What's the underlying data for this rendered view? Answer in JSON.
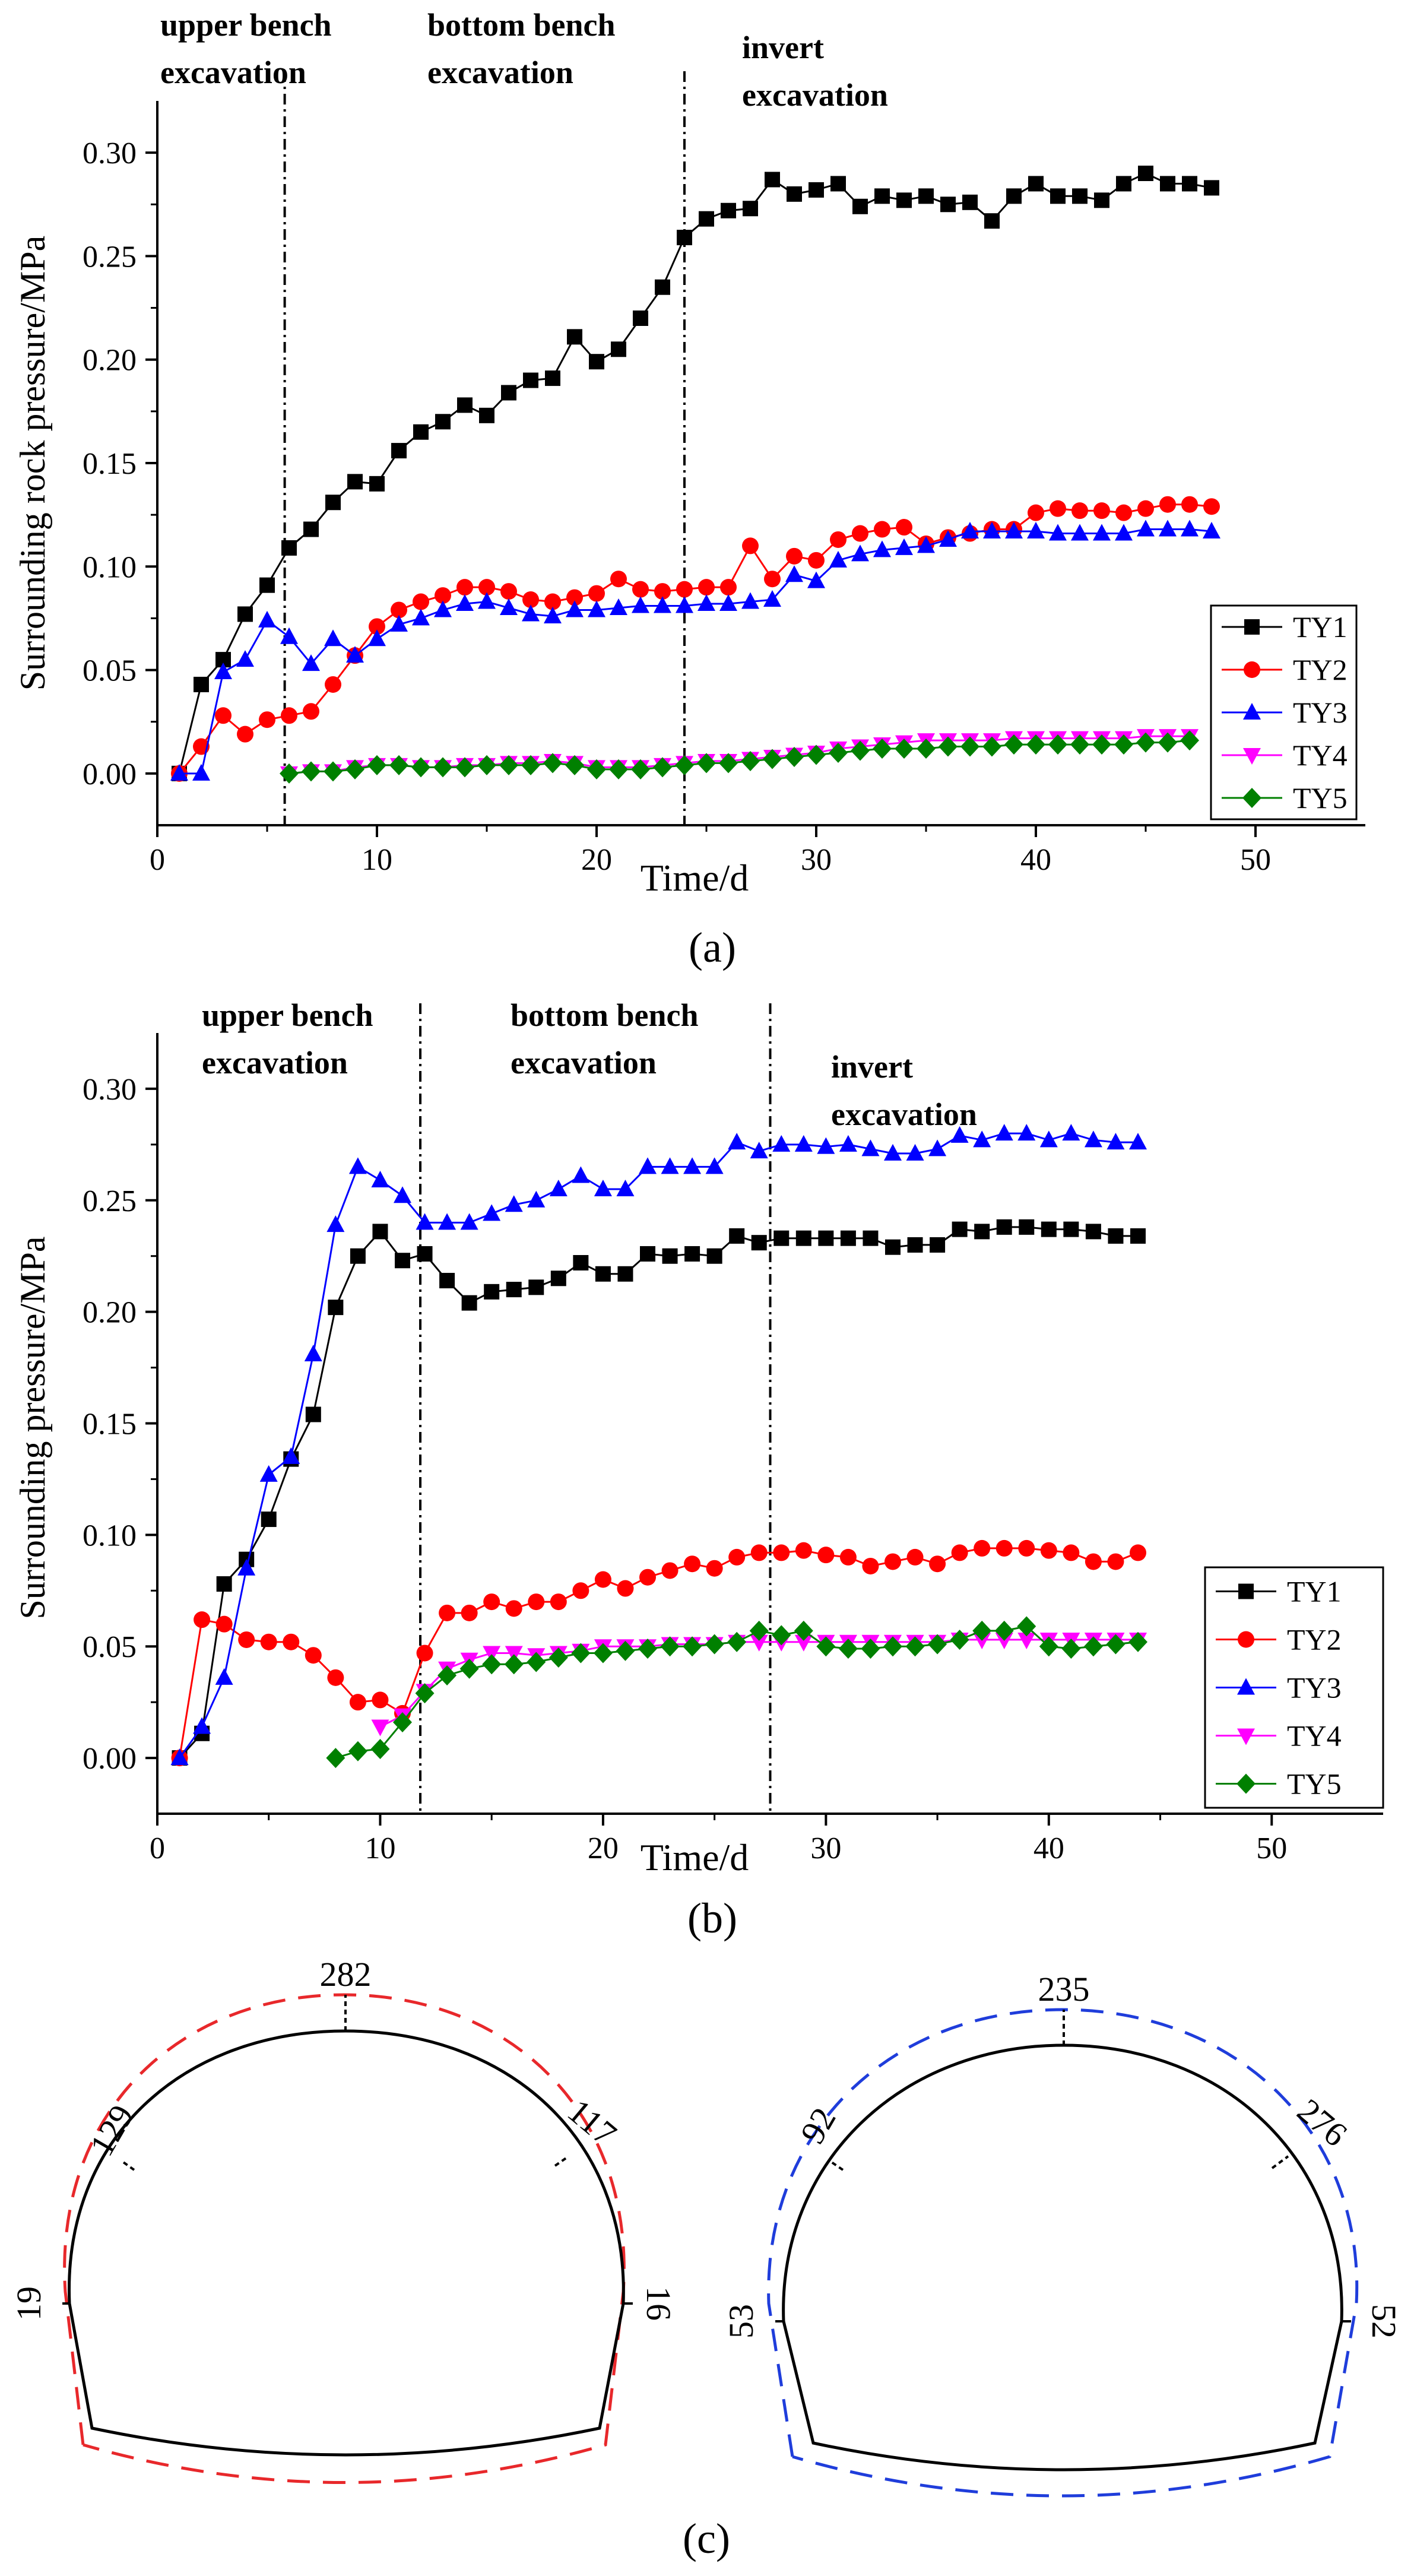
{
  "panels": [
    {
      "id": "a",
      "caption": "(a)",
      "phases": [
        "upper bench excavation",
        "bottom bench excavation",
        "invert excavation"
      ],
      "phase_dividers_x": [
        5.8,
        24.0
      ],
      "colors": {
        "TY1": "#000000",
        "TY2": "#ff0000",
        "TY3": "#0000ff",
        "TY4": "#ff00ff",
        "TY5": "#008000"
      }
    },
    {
      "id": "b",
      "caption": "(b)",
      "phases": [
        "upper bench excavation",
        "bottom bench excavation",
        "invert excavation"
      ],
      "phase_dividers_x": [
        11.8,
        27.5
      ],
      "colors": {
        "TY1": "#000000",
        "TY2": "#ff0000",
        "TY3": "#0000ff",
        "TY4": "#ff00ff",
        "TY5": "#008000"
      }
    }
  ],
  "chart_data": [
    {
      "type": "line",
      "xlabel": "Time/d",
      "ylabel": "Surrounding rock pressure/MPa",
      "xlim": [
        0,
        55
      ],
      "ylim": [
        -0.025,
        0.325
      ],
      "xticks": [
        "0",
        "10",
        "20",
        "30",
        "40",
        "50"
      ],
      "xtick_values": [
        0,
        10,
        20,
        30,
        40,
        50
      ],
      "yticks": [
        "0.00",
        "0.05",
        "0.10",
        "0.15",
        "0.20",
        "0.25",
        "0.30"
      ],
      "ytick_values": [
        0.0,
        0.05,
        0.1,
        0.15,
        0.2,
        0.25,
        0.3
      ],
      "legend_position": "bottom-right",
      "series": [
        {
          "name": "TY1",
          "marker": "square",
          "x": [
            1,
            2,
            3,
            4,
            5,
            6,
            7,
            8,
            9,
            10,
            11,
            12,
            13,
            14,
            15,
            16,
            17,
            18,
            19,
            20,
            21,
            22,
            23,
            24,
            25,
            26,
            27,
            28,
            29,
            30,
            31,
            32,
            33,
            34,
            35,
            36,
            37,
            38,
            39,
            40,
            41,
            42,
            43,
            44,
            45,
            46,
            47,
            48
          ],
          "y": [
            0.0,
            0.043,
            0.055,
            0.077,
            0.091,
            0.109,
            0.118,
            0.131,
            0.141,
            0.14,
            0.156,
            0.165,
            0.17,
            0.178,
            0.173,
            0.184,
            0.19,
            0.191,
            0.211,
            0.199,
            0.205,
            0.22,
            0.235,
            0.259,
            0.268,
            0.272,
            0.273,
            0.287,
            0.28,
            0.282,
            0.285,
            0.274,
            0.279,
            0.277,
            0.279,
            0.275,
            0.276,
            0.267,
            0.279,
            0.285,
            0.279,
            0.279,
            0.277,
            0.285,
            0.29,
            0.285,
            0.285,
            0.283
          ]
        },
        {
          "name": "TY2",
          "marker": "circle",
          "x": [
            1,
            2,
            3,
            4,
            5,
            6,
            7,
            8,
            9,
            10,
            11,
            12,
            13,
            14,
            15,
            16,
            17,
            18,
            19,
            20,
            21,
            22,
            23,
            24,
            25,
            26,
            27,
            28,
            29,
            30,
            31,
            32,
            33,
            34,
            35,
            36,
            37,
            38,
            39,
            40,
            41,
            42,
            43,
            44,
            45,
            46,
            47,
            48
          ],
          "y": [
            0.0,
            0.013,
            0.028,
            0.019,
            0.026,
            0.028,
            0.03,
            0.043,
            0.057,
            0.071,
            0.079,
            0.083,
            0.086,
            0.09,
            0.09,
            0.088,
            0.084,
            0.083,
            0.085,
            0.087,
            0.094,
            0.089,
            0.088,
            0.089,
            0.09,
            0.09,
            0.11,
            0.094,
            0.105,
            0.103,
            0.113,
            0.116,
            0.118,
            0.119,
            0.111,
            0.114,
            0.116,
            0.118,
            0.118,
            0.126,
            0.128,
            0.127,
            0.127,
            0.126,
            0.128,
            0.13,
            0.13,
            0.129
          ]
        },
        {
          "name": "TY3",
          "marker": "triangle-up",
          "x": [
            1,
            2,
            3,
            4,
            5,
            6,
            7,
            8,
            9,
            10,
            11,
            12,
            13,
            14,
            15,
            16,
            17,
            18,
            19,
            20,
            21,
            22,
            23,
            24,
            25,
            26,
            27,
            28,
            29,
            30,
            31,
            32,
            33,
            34,
            35,
            36,
            37,
            38,
            39,
            40,
            41,
            42,
            43,
            44,
            45,
            46,
            47,
            48
          ],
          "y": [
            0.0,
            0.0,
            0.049,
            0.055,
            0.074,
            0.066,
            0.053,
            0.065,
            0.057,
            0.065,
            0.072,
            0.075,
            0.079,
            0.082,
            0.083,
            0.08,
            0.077,
            0.076,
            0.079,
            0.079,
            0.08,
            0.081,
            0.081,
            0.081,
            0.082,
            0.082,
            0.083,
            0.084,
            0.096,
            0.093,
            0.103,
            0.106,
            0.108,
            0.109,
            0.11,
            0.113,
            0.117,
            0.117,
            0.117,
            0.117,
            0.116,
            0.116,
            0.116,
            0.116,
            0.118,
            0.118,
            0.118,
            0.117
          ]
        },
        {
          "name": "TY4",
          "marker": "triangle-down",
          "x": [
            6,
            7,
            8,
            9,
            10,
            11,
            12,
            13,
            14,
            15,
            16,
            17,
            18,
            19,
            20,
            21,
            22,
            23,
            24,
            25,
            26,
            27,
            28,
            29,
            30,
            31,
            32,
            33,
            34,
            35,
            36,
            37,
            38,
            39,
            40,
            41,
            42,
            43,
            44,
            45,
            46,
            47
          ],
          "y": [
            0.0,
            0.001,
            0.001,
            0.003,
            0.004,
            0.004,
            0.003,
            0.003,
            0.004,
            0.004,
            0.005,
            0.005,
            0.006,
            0.005,
            0.003,
            0.003,
            0.003,
            0.004,
            0.005,
            0.006,
            0.006,
            0.007,
            0.008,
            0.009,
            0.01,
            0.012,
            0.013,
            0.014,
            0.015,
            0.016,
            0.016,
            0.016,
            0.016,
            0.017,
            0.017,
            0.017,
            0.017,
            0.017,
            0.017,
            0.018,
            0.018,
            0.018
          ]
        },
        {
          "name": "TY5",
          "marker": "diamond",
          "x": [
            6,
            7,
            8,
            9,
            10,
            11,
            12,
            13,
            14,
            15,
            16,
            17,
            18,
            19,
            20,
            21,
            22,
            23,
            24,
            25,
            26,
            27,
            28,
            29,
            30,
            31,
            32,
            33,
            34,
            35,
            36,
            37,
            38,
            39,
            40,
            41,
            42,
            43,
            44,
            45,
            46,
            47
          ],
          "y": [
            0.0,
            0.001,
            0.001,
            0.002,
            0.004,
            0.004,
            0.003,
            0.003,
            0.003,
            0.004,
            0.004,
            0.004,
            0.005,
            0.004,
            0.002,
            0.002,
            0.002,
            0.003,
            0.004,
            0.005,
            0.005,
            0.006,
            0.007,
            0.008,
            0.009,
            0.01,
            0.011,
            0.012,
            0.012,
            0.012,
            0.013,
            0.013,
            0.013,
            0.014,
            0.014,
            0.014,
            0.014,
            0.014,
            0.014,
            0.015,
            0.015,
            0.016
          ]
        }
      ]
    },
    {
      "type": "line",
      "xlabel": "Time/d",
      "ylabel": "Surrounding pressure/MPa",
      "xlim": [
        0,
        55
      ],
      "ylim": [
        -0.025,
        0.325
      ],
      "xticks": [
        "0",
        "10",
        "20",
        "30",
        "40",
        "50"
      ],
      "xtick_values": [
        0,
        10,
        20,
        30,
        40,
        50
      ],
      "yticks": [
        "0.00",
        "0.05",
        "0.10",
        "0.15",
        "0.20",
        "0.25",
        "0.30"
      ],
      "ytick_values": [
        0.0,
        0.05,
        0.1,
        0.15,
        0.2,
        0.25,
        0.3
      ],
      "legend_position": "bottom-right",
      "series": [
        {
          "name": "TY1",
          "marker": "square",
          "x": [
            1,
            2,
            3,
            4,
            5,
            6,
            7,
            8,
            9,
            10,
            11,
            12,
            13,
            14,
            15,
            16,
            17,
            18,
            19,
            20,
            21,
            22,
            23,
            24,
            25,
            26,
            27,
            28,
            29,
            30,
            31,
            32,
            33,
            34,
            35,
            36,
            37,
            38,
            39,
            40,
            41,
            42,
            43,
            44
          ],
          "y": [
            0.0,
            0.011,
            0.078,
            0.089,
            0.107,
            0.134,
            0.154,
            0.202,
            0.225,
            0.236,
            0.223,
            0.226,
            0.214,
            0.204,
            0.209,
            0.21,
            0.211,
            0.215,
            0.222,
            0.217,
            0.217,
            0.226,
            0.225,
            0.226,
            0.225,
            0.234,
            0.231,
            0.233,
            0.233,
            0.233,
            0.233,
            0.233,
            0.229,
            0.23,
            0.23,
            0.237,
            0.236,
            0.238,
            0.238,
            0.237,
            0.237,
            0.236,
            0.234,
            0.234
          ]
        },
        {
          "name": "TY2",
          "marker": "circle",
          "x": [
            1,
            2,
            3,
            4,
            5,
            6,
            7,
            8,
            9,
            10,
            11,
            12,
            13,
            14,
            15,
            16,
            17,
            18,
            19,
            20,
            21,
            22,
            23,
            24,
            25,
            26,
            27,
            28,
            29,
            30,
            31,
            32,
            33,
            34,
            35,
            36,
            37,
            38,
            39,
            40,
            41,
            42,
            43,
            44
          ],
          "y": [
            0.0,
            0.062,
            0.06,
            0.053,
            0.052,
            0.052,
            0.046,
            0.036,
            0.025,
            0.026,
            0.02,
            0.047,
            0.065,
            0.065,
            0.07,
            0.067,
            0.07,
            0.07,
            0.075,
            0.08,
            0.076,
            0.081,
            0.084,
            0.087,
            0.085,
            0.09,
            0.092,
            0.092,
            0.093,
            0.091,
            0.09,
            0.086,
            0.088,
            0.09,
            0.087,
            0.092,
            0.094,
            0.094,
            0.094,
            0.093,
            0.092,
            0.088,
            0.088,
            0.092
          ]
        },
        {
          "name": "TY3",
          "marker": "triangle-up",
          "x": [
            1,
            2,
            3,
            4,
            5,
            6,
            7,
            8,
            9,
            10,
            11,
            12,
            13,
            14,
            15,
            16,
            17,
            18,
            19,
            20,
            21,
            22,
            23,
            24,
            25,
            26,
            27,
            28,
            29,
            30,
            31,
            32,
            33,
            34,
            35,
            36,
            37,
            38,
            39,
            40,
            41,
            42,
            43,
            44
          ],
          "y": [
            0.0,
            0.014,
            0.036,
            0.085,
            0.127,
            0.135,
            0.181,
            0.239,
            0.265,
            0.259,
            0.252,
            0.24,
            0.24,
            0.24,
            0.244,
            0.248,
            0.25,
            0.255,
            0.261,
            0.255,
            0.255,
            0.265,
            0.265,
            0.265,
            0.265,
            0.276,
            0.272,
            0.275,
            0.275,
            0.274,
            0.275,
            0.273,
            0.271,
            0.271,
            0.273,
            0.279,
            0.277,
            0.28,
            0.28,
            0.277,
            0.28,
            0.277,
            0.276,
            0.276
          ]
        },
        {
          "name": "TY4",
          "marker": "triangle-down",
          "x": [
            10,
            11,
            12,
            13,
            14,
            15,
            16,
            17,
            18,
            19,
            20,
            21,
            22,
            23,
            24,
            25,
            26,
            27,
            28,
            29,
            30,
            31,
            32,
            33,
            34,
            35,
            36,
            37,
            38,
            39,
            40,
            41,
            42,
            43,
            44
          ],
          "y": [
            0.014,
            0.019,
            0.03,
            0.04,
            0.044,
            0.047,
            0.047,
            0.046,
            0.047,
            0.048,
            0.05,
            0.05,
            0.05,
            0.051,
            0.051,
            0.051,
            0.052,
            0.052,
            0.052,
            0.052,
            0.052,
            0.052,
            0.052,
            0.052,
            0.052,
            0.052,
            0.053,
            0.053,
            0.053,
            0.053,
            0.053,
            0.053,
            0.053,
            0.053,
            0.053
          ]
        },
        {
          "name": "TY5",
          "marker": "diamond",
          "x": [
            8,
            9,
            10,
            11,
            12,
            13,
            14,
            15,
            16,
            17,
            18,
            19,
            20,
            21,
            22,
            23,
            24,
            25,
            26,
            27,
            28,
            29,
            30,
            31,
            32,
            33,
            34,
            35,
            36,
            37,
            38,
            39,
            40,
            41,
            42,
            43,
            44
          ],
          "y": [
            0.0,
            0.003,
            0.004,
            0.016,
            0.029,
            0.037,
            0.04,
            0.042,
            0.042,
            0.043,
            0.045,
            0.047,
            0.047,
            0.048,
            0.049,
            0.05,
            0.05,
            0.051,
            0.052,
            0.057,
            0.055,
            0.057,
            0.05,
            0.049,
            0.049,
            0.05,
            0.05,
            0.051,
            0.053,
            0.057,
            0.057,
            0.059,
            0.05,
            0.049,
            0.05,
            0.051,
            0.052
          ]
        }
      ]
    },
    {
      "type": "diagram",
      "caption": "(c)",
      "tunnels": [
        {
          "id": "left",
          "dash_color": "#e8282b",
          "labels": {
            "crown": "282",
            "upper_left": "129",
            "upper_right": "117",
            "left_wall": "19",
            "right_wall": "16"
          }
        },
        {
          "id": "right",
          "dash_color": "#1f3ddb",
          "labels": {
            "crown": "235",
            "upper_left": "92",
            "upper_right": "276",
            "left_wall": "53",
            "right_wall": "52"
          }
        }
      ]
    }
  ]
}
